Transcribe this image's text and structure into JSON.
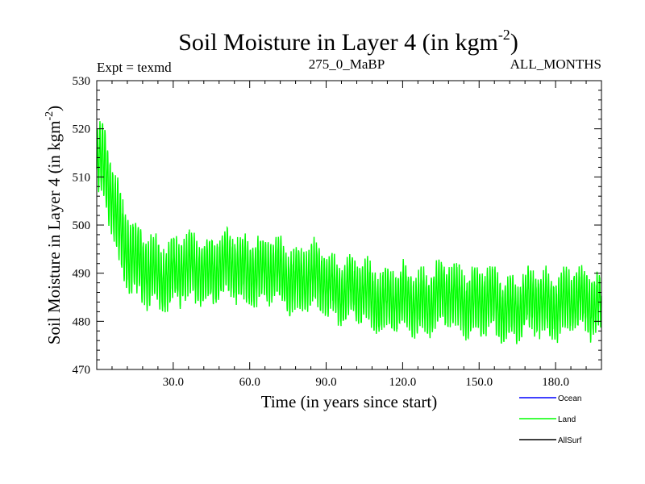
{
  "chart_data": {
    "type": "line",
    "title": "Soil Moisture in Layer 4 (in kgm",
    "title_superscript": "-2",
    "title_suffix": ")",
    "header_left": "Expt = texmd",
    "header_center": "275_0_MaBP",
    "header_right": "ALL_MONTHS",
    "xlabel": "Time (in years since start)",
    "ylabel": "Soil Moisture in Layer 4 (in kgm",
    "ylabel_superscript": "-2",
    "ylabel_suffix": ")",
    "xlim": [
      0,
      198
    ],
    "ylim": [
      470,
      530
    ],
    "x_ticks": [
      30,
      60,
      90,
      120,
      150,
      180
    ],
    "x_tick_labels": [
      "30.0",
      "60.0",
      "90.0",
      "120.0",
      "150.0",
      "180.0"
    ],
    "y_ticks": [
      470,
      480,
      490,
      500,
      510,
      520,
      530
    ],
    "y_tick_labels": [
      "470",
      "480",
      "490",
      "500",
      "510",
      "520",
      "530"
    ],
    "series": [
      {
        "name": "Land",
        "color": "#00ff00",
        "mean_trend": {
          "x": [
            0,
            3,
            6,
            9,
            12,
            15,
            20,
            30,
            40,
            60,
            80,
            90,
            100,
            110,
            120,
            140,
            160,
            180,
            198
          ],
          "y": [
            512,
            512,
            506,
            500,
            495,
            492,
            490,
            490,
            491,
            491,
            489,
            488,
            486,
            485,
            484,
            485,
            483,
            484,
            484
          ]
        },
        "amplitude_trend": {
          "x": [
            0,
            10,
            30,
            60,
            100,
            150,
            198
          ],
          "y": [
            7,
            7,
            6,
            6,
            5.5,
            6,
            5.5
          ]
        },
        "samples_per_year": 12
      }
    ],
    "legend": [
      {
        "label": "Ocean",
        "color": "#0000ff"
      },
      {
        "label": "Land",
        "color": "#00ff00"
      },
      {
        "label": "AllSurf",
        "color": "#000000"
      }
    ]
  }
}
